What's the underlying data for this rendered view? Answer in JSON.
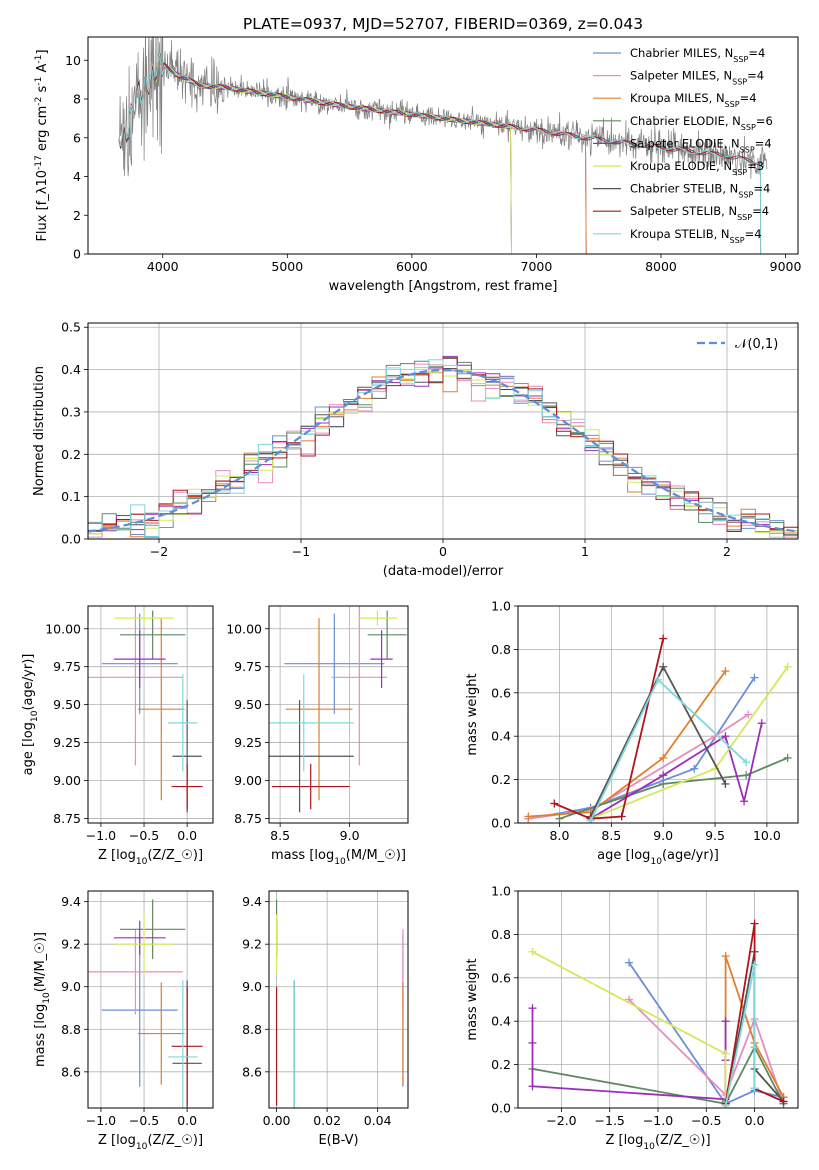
{
  "colors": {
    "Chabrier MILES": "#6a8fd8",
    "Salpeter MILES": "#e98cbf",
    "Kroupa MILES": "#e07f2c",
    "Chabrier ELODIE": "#5e8a62",
    "Salpeter ELODIE": "#9b30b8",
    "Kroupa ELODIE": "#d4e85c",
    "Chabrier STELIB": "#555555",
    "Salpeter STELIB": "#b0141c",
    "Kroupa STELIB": "#7fd8dc",
    "data": "#808080",
    "normal": "#5b8fdc"
  },
  "chart_data": [
    {
      "id": "spectrum",
      "type": "line",
      "title": "PLATE=0937, MJD=52707, FIBERID=0369, z=0.043",
      "xlabel": "wavelength [Angstrom, rest frame]",
      "ylabel": "Flux [f$_\\lambda$10$^{-17}$ erg cm$^{-2}$ s$^{-1}$ A$^{-1}$]",
      "xlim": [
        3400,
        9100
      ],
      "ylim": [
        0,
        11.2
      ],
      "xticks": [
        4000,
        5000,
        6000,
        7000,
        8000,
        9000
      ],
      "yticks": [
        0,
        2,
        4,
        6,
        8,
        10
      ],
      "grid": false,
      "legend": "top-right",
      "legend_entries": [
        {
          "label": "Chabrier MILES, N$_{SSP}$=4",
          "model": "Chabrier MILES"
        },
        {
          "label": "Salpeter MILES, N$_{SSP}$=4",
          "model": "Salpeter MILES"
        },
        {
          "label": "Kroupa MILES, N$_{SSP}$=4",
          "model": "Kroupa MILES"
        },
        {
          "label": "Chabrier ELODIE, N$_{SSP}$=6",
          "model": "Chabrier ELODIE"
        },
        {
          "label": "Salpeter ELODIE, N$_{SSP}$=4",
          "model": "Salpeter ELODIE"
        },
        {
          "label": "Kroupa ELODIE, N$_{SSP}$=3",
          "model": "Kroupa ELODIE"
        },
        {
          "label": "Chabrier STELIB, N$_{SSP}$=4",
          "model": "Chabrier STELIB"
        },
        {
          "label": "Salpeter STELIB, N$_{SSP}$=4",
          "model": "Salpeter STELIB"
        },
        {
          "label": "Kroupa STELIB, N$_{SSP}$=4",
          "model": "Kroupa STELIB"
        }
      ],
      "continuum": {
        "x": [
          3650,
          3700,
          3800,
          3900,
          3950,
          4000,
          4100,
          4300,
          4500,
          5000,
          5500,
          6000,
          6500,
          7000,
          7500,
          8000,
          8500,
          8800
        ],
        "y": [
          6.2,
          6.0,
          8.2,
          9.0,
          9.6,
          9.8,
          9.3,
          8.7,
          8.6,
          8.1,
          7.6,
          7.2,
          6.8,
          6.4,
          5.9,
          5.5,
          5.1,
          4.7
        ]
      },
      "model_ranges": {
        "Chabrier MILES": [
          3650,
          7400
        ],
        "Salpeter MILES": [
          3650,
          7400
        ],
        "Kroupa MILES": [
          3650,
          7400
        ],
        "Chabrier ELODIE": [
          3900,
          6800
        ],
        "Salpeter ELODIE": [
          3900,
          6800
        ],
        "Kroupa ELODIE": [
          3900,
          6800
        ],
        "Chabrier STELIB": [
          3650,
          8800
        ],
        "Salpeter STELIB": [
          3650,
          8800
        ],
        "Kroupa STELIB": [
          3650,
          8800
        ]
      }
    },
    {
      "id": "residuals",
      "type": "line",
      "xlabel": "(data-model)/error",
      "ylabel": "Normed distribution",
      "xlim": [
        -2.5,
        2.5
      ],
      "ylim": [
        0,
        0.51
      ],
      "xticks": [
        -2,
        -1,
        0,
        1,
        2
      ],
      "yticks": [
        0.0,
        0.1,
        0.2,
        0.3,
        0.4,
        0.5
      ],
      "grid": true,
      "legend": "top-right",
      "legend_label": "$\\mathcal{N}(0,1)$",
      "bin_width": 0.1
    },
    {
      "id": "age-Z",
      "type": "scatter",
      "xlabel": "Z [log$_{10}$($Z/Z_\\odot$)]",
      "ylabel": "age  [log$_{10}$($age/yr$)]",
      "xlim": [
        -1.15,
        0.3
      ],
      "ylim": [
        8.72,
        10.15
      ],
      "xticks": [
        -1.0,
        -0.5,
        0.0
      ],
      "yticks": [
        8.75,
        9.0,
        9.25,
        9.5,
        9.75,
        10.0
      ],
      "grid": true,
      "points": [
        {
          "model": "Chabrier MILES",
          "x": -0.55,
          "y": 9.77,
          "xerr": 0.44,
          "yerr": 0.33
        },
        {
          "model": "Salpeter MILES",
          "x": -0.6,
          "y": 9.68,
          "xerr": 0.55,
          "yerr": 0.58
        },
        {
          "model": "Kroupa MILES",
          "x": -0.3,
          "y": 9.47,
          "xerr": 0.27,
          "yerr": 0.6
        },
        {
          "model": "Chabrier ELODIE",
          "x": -0.4,
          "y": 9.96,
          "xerr": 0.38,
          "yerr": 0.16
        },
        {
          "model": "Salpeter ELODIE",
          "x": -0.55,
          "y": 9.8,
          "xerr": 0.3,
          "yerr": 0.19
        },
        {
          "model": "Kroupa ELODIE",
          "x": -0.5,
          "y": 10.07,
          "xerr": 0.34,
          "yerr": 0.05
        },
        {
          "model": "Chabrier STELIB",
          "x": 0.0,
          "y": 9.16,
          "xerr": 0.17,
          "yerr": 0.37
        },
        {
          "model": "Salpeter STELIB",
          "x": 0.0,
          "y": 8.96,
          "xerr": 0.18,
          "yerr": 0.15
        },
        {
          "model": "Kroupa STELIB",
          "x": -0.05,
          "y": 9.38,
          "xerr": 0.17,
          "yerr": 0.32
        }
      ]
    },
    {
      "id": "age-mass",
      "type": "scatter",
      "xlabel": "mass [log$_{10}$($M/M_\\odot$)]",
      "ylabel": "",
      "xlim": [
        8.42,
        9.42
      ],
      "ylim": [
        8.72,
        10.15
      ],
      "xticks": [
        8.5,
        9.0
      ],
      "yticks": [
        8.75,
        9.0,
        9.25,
        9.5,
        9.75,
        10.0
      ],
      "grid": true,
      "points": [
        {
          "model": "Chabrier MILES",
          "x": 8.89,
          "y": 9.77,
          "xerr": 0.36,
          "yerr": 0.33
        },
        {
          "model": "Salpeter MILES",
          "x": 9.07,
          "y": 9.68,
          "xerr": 0.2,
          "yerr": 0.58
        },
        {
          "model": "Kroupa MILES",
          "x": 8.78,
          "y": 9.47,
          "xerr": 0.24,
          "yerr": 0.6
        },
        {
          "model": "Chabrier ELODIE",
          "x": 9.27,
          "y": 9.96,
          "xerr": 0.14,
          "yerr": 0.16
        },
        {
          "model": "Salpeter ELODIE",
          "x": 9.23,
          "y": 9.8,
          "xerr": 0.08,
          "yerr": 0.19
        },
        {
          "model": "Kroupa ELODIE",
          "x": 9.2,
          "y": 10.07,
          "xerr": 0.14,
          "yerr": 0.05
        },
        {
          "model": "Chabrier STELIB",
          "x": 8.64,
          "y": 9.16,
          "xerr": 0.39,
          "yerr": 0.37
        },
        {
          "model": "Salpeter STELIB",
          "x": 8.72,
          "y": 8.96,
          "xerr": 0.28,
          "yerr": 0.15
        },
        {
          "model": "Kroupa STELIB",
          "x": 8.67,
          "y": 9.38,
          "xerr": 0.36,
          "yerr": 0.32
        }
      ]
    },
    {
      "id": "weight-age",
      "type": "line",
      "xlabel": "age  [log$_{10}$($age/yr$)]",
      "ylabel": "mass weight",
      "xlim": [
        7.6,
        10.3
      ],
      "ylim": [
        0,
        1.0
      ],
      "xticks": [
        8.0,
        8.5,
        9.0,
        9.5,
        10.0
      ],
      "yticks": [
        0.0,
        0.2,
        0.4,
        0.6,
        0.8,
        1.0
      ],
      "grid": true,
      "series": [
        {
          "model": "Chabrier MILES",
          "x": [
            7.7,
            8.3,
            9.3,
            9.88
          ],
          "y": [
            0.02,
            0.07,
            0.25,
            0.67
          ]
        },
        {
          "model": "Salpeter MILES",
          "x": [
            7.7,
            8.3,
            9.5,
            9.82
          ],
          "y": [
            0.02,
            0.06,
            0.4,
            0.5
          ]
        },
        {
          "model": "Kroupa MILES",
          "x": [
            7.7,
            8.3,
            9.0,
            9.6
          ],
          "y": [
            0.03,
            0.05,
            0.3,
            0.7
          ]
        },
        {
          "model": "Chabrier ELODIE",
          "x": [
            8.0,
            9.0,
            9.8,
            10.2
          ],
          "y": [
            0.02,
            0.18,
            0.22,
            0.3
          ]
        },
        {
          "model": "Salpeter ELODIE",
          "x": [
            8.3,
            9.0,
            9.6,
            9.78,
            9.95
          ],
          "y": [
            0.02,
            0.22,
            0.4,
            0.1,
            0.46
          ]
        },
        {
          "model": "Kroupa ELODIE",
          "x": [
            8.3,
            9.5,
            10.2
          ],
          "y": [
            0.02,
            0.25,
            0.72
          ]
        },
        {
          "model": "Chabrier STELIB",
          "x": [
            8.3,
            9.0,
            9.6
          ],
          "y": [
            0.03,
            0.72,
            0.18
          ]
        },
        {
          "model": "Salpeter STELIB",
          "x": [
            7.95,
            8.3,
            8.6,
            9.0
          ],
          "y": [
            0.09,
            0.02,
            0.03,
            0.85
          ]
        },
        {
          "model": "Kroupa STELIB",
          "x": [
            8.3,
            8.95,
            9.8
          ],
          "y": [
            0.01,
            0.66,
            0.28
          ]
        }
      ]
    },
    {
      "id": "mass-Z",
      "type": "scatter",
      "xlabel": "Z [log$_{10}$($Z/Z_\\odot$)]",
      "ylabel": "mass [log$_{10}$($M/M_\\odot$)]",
      "xlim": [
        -1.15,
        0.3
      ],
      "ylim": [
        8.43,
        9.45
      ],
      "xticks": [
        -1.0,
        -0.5,
        0.0
      ],
      "yticks": [
        8.6,
        8.8,
        9.0,
        9.2,
        9.4
      ],
      "grid": true,
      "points": [
        {
          "model": "Chabrier MILES",
          "x": -0.55,
          "y": 8.89,
          "xerr": 0.44,
          "yerr": 0.36
        },
        {
          "model": "Salpeter MILES",
          "x": -0.6,
          "y": 9.07,
          "xerr": 0.55,
          "yerr": 0.2
        },
        {
          "model": "Kroupa MILES",
          "x": -0.3,
          "y": 8.78,
          "xerr": 0.27,
          "yerr": 0.24
        },
        {
          "model": "Chabrier ELODIE",
          "x": -0.4,
          "y": 9.27,
          "xerr": 0.38,
          "yerr": 0.14
        },
        {
          "model": "Salpeter ELODIE",
          "x": -0.55,
          "y": 9.23,
          "xerr": 0.3,
          "yerr": 0.08
        },
        {
          "model": "Kroupa ELODIE",
          "x": -0.5,
          "y": 9.2,
          "xerr": 0.34,
          "yerr": 0.14
        },
        {
          "model": "Chabrier STELIB",
          "x": 0.0,
          "y": 8.64,
          "xerr": 0.17,
          "yerr": 0.39
        },
        {
          "model": "Salpeter STELIB",
          "x": 0.0,
          "y": 8.72,
          "xerr": 0.18,
          "yerr": 0.28
        },
        {
          "model": "Kroupa STELIB",
          "x": -0.05,
          "y": 8.67,
          "xerr": 0.17,
          "yerr": 0.36
        }
      ]
    },
    {
      "id": "mass-ebv",
      "type": "scatter",
      "xlabel": "E(B-V)",
      "ylabel": "",
      "xlim": [
        -0.003,
        0.052
      ],
      "ylim": [
        8.43,
        9.45
      ],
      "xticks": [
        0.0,
        0.02,
        0.04
      ],
      "yticks": [
        8.6,
        8.8,
        9.0,
        9.2,
        9.4
      ],
      "grid": true,
      "points": [
        {
          "model": "Chabrier MILES",
          "x": 0.05,
          "y": 8.89,
          "xerr": 0,
          "yerr": 0.36
        },
        {
          "model": "Salpeter MILES",
          "x": 0.05,
          "y": 9.07,
          "xerr": 0,
          "yerr": 0.2
        },
        {
          "model": "Kroupa MILES",
          "x": 0.05,
          "y": 8.78,
          "xerr": 0,
          "yerr": 0.24
        },
        {
          "model": "Chabrier ELODIE",
          "x": 0.0,
          "y": 9.27,
          "xerr": 0,
          "yerr": 0.14
        },
        {
          "model": "Salpeter ELODIE",
          "x": 0.0,
          "y": 9.23,
          "xerr": 0,
          "yerr": 0.08
        },
        {
          "model": "Kroupa ELODIE",
          "x": 0.0,
          "y": 9.2,
          "xerr": 0,
          "yerr": 0.14
        },
        {
          "model": "Chabrier STELIB",
          "x": 0.007,
          "y": 8.64,
          "xerr": 0,
          "yerr": 0.39
        },
        {
          "model": "Salpeter STELIB",
          "x": 0.0,
          "y": 8.72,
          "xerr": 0,
          "yerr": 0.28
        },
        {
          "model": "Kroupa STELIB",
          "x": 0.007,
          "y": 8.67,
          "xerr": 0,
          "yerr": 0.36
        }
      ]
    },
    {
      "id": "weight-Z",
      "type": "line",
      "xlabel": "Z [log$_{10}$($Z/Z_\\odot$)]",
      "ylabel": "mass weight",
      "xlim": [
        -2.45,
        0.45
      ],
      "ylim": [
        0,
        1.0
      ],
      "xticks": [
        -2.0,
        -1.5,
        -1.0,
        -0.5,
        0.0
      ],
      "yticks": [
        0.0,
        0.2,
        0.4,
        0.6,
        0.8,
        1.0
      ],
      "grid": true,
      "series": [
        {
          "model": "Chabrier MILES",
          "x": [
            -1.3,
            -0.3,
            0.0,
            0.3
          ],
          "y": [
            0.67,
            0.02,
            0.08,
            0.05
          ]
        },
        {
          "model": "Salpeter MILES",
          "x": [
            -1.3,
            -0.3,
            0.0,
            0.3
          ],
          "y": [
            0.5,
            0.06,
            0.41,
            0.02
          ]
        },
        {
          "model": "Kroupa MILES",
          "x": [
            -0.3,
            -0.3,
            0.0,
            0.3
          ],
          "y": [
            0.03,
            0.7,
            0.3,
            0.05
          ]
        },
        {
          "model": "Chabrier ELODIE",
          "x": [
            -2.3,
            -0.3,
            0.0,
            0.3
          ],
          "y": [
            0.18,
            0.02,
            0.28,
            0.02
          ]
        },
        {
          "model": "Salpeter ELODIE",
          "x": [
            -2.3,
            -2.3,
            -2.3,
            -0.3,
            -0.3,
            -0.3
          ],
          "y": [
            0.46,
            0.3,
            0.1,
            0.04,
            0.4,
            0.22
          ]
        },
        {
          "model": "Kroupa ELODIE",
          "x": [
            -2.3,
            -0.3,
            -0.3
          ],
          "y": [
            0.72,
            0.25,
            0.02
          ]
        },
        {
          "model": "Chabrier STELIB",
          "x": [
            -0.3,
            0.0,
            0.0,
            0.3
          ],
          "y": [
            0.02,
            0.72,
            0.18,
            0.03
          ]
        },
        {
          "model": "Salpeter STELIB",
          "x": [
            -0.3,
            0.0,
            0.0,
            0.3
          ],
          "y": [
            0.02,
            0.85,
            0.09,
            0.03
          ]
        },
        {
          "model": "Kroupa STELIB",
          "x": [
            -0.3,
            0.0,
            0.0,
            0.0
          ],
          "y": [
            0.01,
            0.66,
            0.28,
            0.09
          ]
        }
      ]
    }
  ]
}
